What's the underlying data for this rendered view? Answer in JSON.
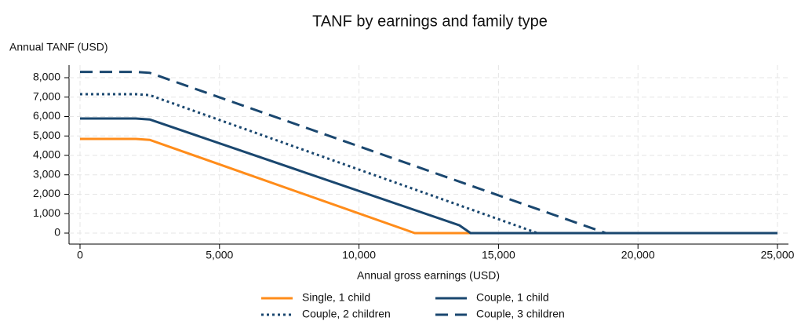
{
  "chart_data": {
    "type": "line",
    "title": "TANF by earnings and family type",
    "y_label": "Annual TANF (USD)",
    "x_label": "Annual gross earnings (USD)",
    "xlim": [
      0,
      25000
    ],
    "ylim": [
      0,
      8000
    ],
    "xticks": [
      0,
      {
        "value": 5000,
        "label": "5,000"
      },
      {
        "value": 10000,
        "label": "10,000"
      },
      {
        "value": 15000,
        "label": "15,000"
      },
      {
        "value": 20000,
        "label": "20,000"
      },
      {
        "value": 25000,
        "label": "25,000"
      }
    ],
    "yticks": [
      0,
      {
        "value": 1000,
        "label": "1,000"
      },
      {
        "value": 2000,
        "label": "2,000"
      },
      {
        "value": 3000,
        "label": "3,000"
      },
      {
        "value": 4000,
        "label": "4,000"
      },
      {
        "value": 5000,
        "label": "5,000"
      },
      {
        "value": 6000,
        "label": "6,000"
      },
      {
        "value": 7000,
        "label": "7,000"
      },
      {
        "value": 8000,
        "label": "8,000"
      }
    ],
    "grid": true,
    "series": [
      {
        "name": "Single, 1 child",
        "color": "#ff8c1a",
        "line_style": "solid",
        "x": [
          0,
          2000,
          2500,
          12000,
          25000
        ],
        "values": [
          4850,
          4850,
          4800,
          0,
          0
        ]
      },
      {
        "name": "Couple, 2 children",
        "color": "#1a476f",
        "line_style": "dot",
        "x": [
          0,
          2000,
          2500,
          16400,
          25000
        ],
        "values": [
          7150,
          7150,
          7100,
          0,
          0
        ]
      },
      {
        "name": "Couple, 1 child",
        "color": "#1a476f",
        "line_style": "solid",
        "x": [
          0,
          2000,
          2500,
          13600,
          14000,
          25000
        ],
        "values": [
          5900,
          5900,
          5850,
          400,
          0,
          0
        ]
      },
      {
        "name": "Couple, 3 children",
        "color": "#1a476f",
        "line_style": "dash",
        "x": [
          0,
          2000,
          2500,
          18850,
          25000
        ],
        "values": [
          8300,
          8300,
          8250,
          0,
          0
        ]
      }
    ]
  }
}
